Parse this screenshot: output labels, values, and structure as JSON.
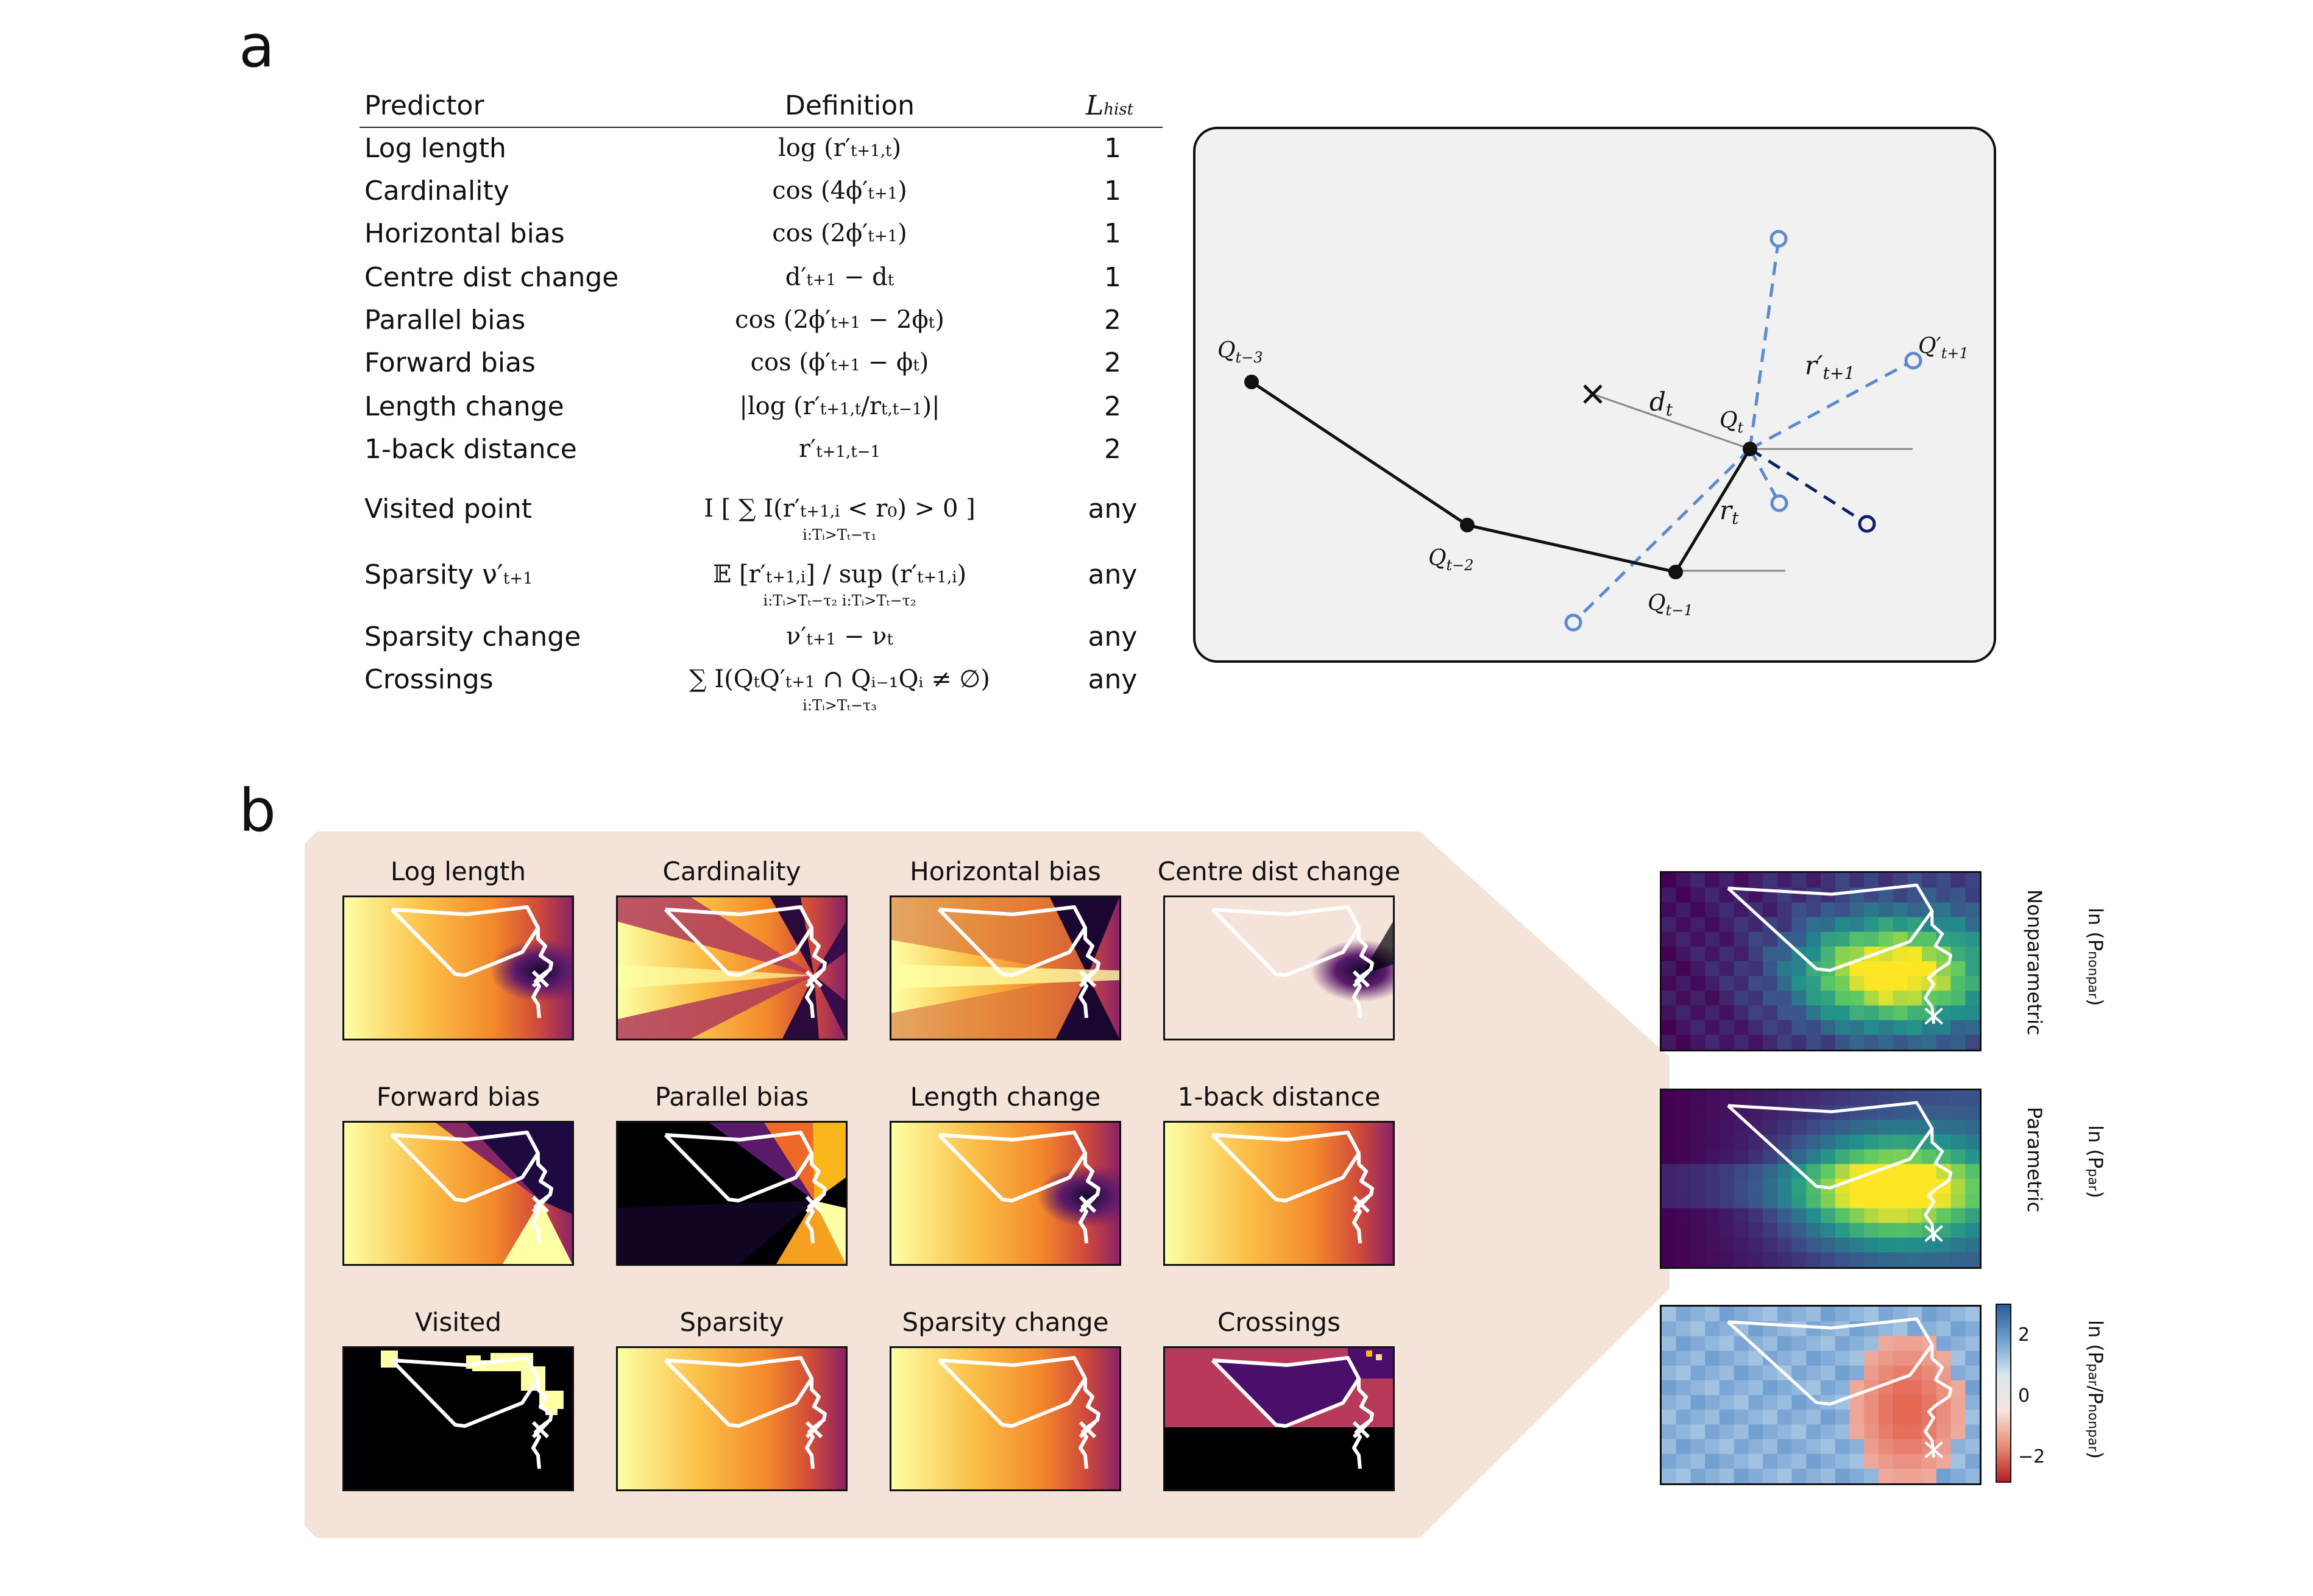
{
  "panel_a": {
    "letter": "a",
    "headers": {
      "predictor": "Predictor",
      "definition": "Definition",
      "lhist": "L",
      "lhist_sub": "hist"
    },
    "rows": [
      {
        "name": "Log length",
        "def": "log (r′",
        "def_sub": "t+1,t",
        "def_tail": ")",
        "lhist": "1"
      },
      {
        "name": "Cardinality",
        "def": "cos (4ϕ′",
        "def_sub": "t+1",
        "def_tail": ")",
        "lhist": "1"
      },
      {
        "name": "Horizontal bias",
        "def": "cos (2ϕ′",
        "def_sub": "t+1",
        "def_tail": ")",
        "lhist": "1"
      },
      {
        "name": "Centre dist change",
        "def": "d′",
        "def_sub": "t+1",
        "def_tail": " − d",
        "def_sub2": "t",
        "lhist": "1"
      },
      {
        "name": "Parallel bias",
        "def": "cos (2ϕ′",
        "def_sub": "t+1",
        "def_tail": " − 2ϕ",
        "def_sub2": "t",
        "def_tail2": ")",
        "lhist": "2"
      },
      {
        "name": "Forward bias",
        "def": "cos (ϕ′",
        "def_sub": "t+1",
        "def_tail": " − ϕ",
        "def_sub2": "t",
        "def_tail2": ")",
        "lhist": "2"
      },
      {
        "name": "Length change",
        "def": "|log (r′",
        "def_sub": "t+1,t",
        "def_tail": "/r",
        "def_sub2": "t,t−1",
        "def_tail2": ")|",
        "lhist": "2"
      },
      {
        "name": "1-back distance",
        "def": "r′",
        "def_sub": "t+1,t−1",
        "def_tail": "",
        "lhist": "2"
      },
      {
        "name": "Visited point",
        "def": "I [ ∑ I(r′",
        "def_sub": "t+1,i",
        "def_tail": " < r₀) > 0 ]",
        "def_under": "i:Tᵢ>Tₜ−τ₁",
        "lhist": "any"
      },
      {
        "name": "Sparsity ν′",
        "name_sub": "t+1",
        "def": "𝔼 [r′",
        "def_sub": "t+1,i",
        "def_tail": "] / sup (r′",
        "def_sub2": "t+1,i",
        "def_tail2": ")",
        "def_under": "i:Tᵢ>Tₜ−τ₂        i:Tᵢ>Tₜ−τ₂",
        "lhist": "any"
      },
      {
        "name": "Sparsity change",
        "def": "ν′",
        "def_sub": "t+1",
        "def_tail": " − ν",
        "def_sub2": "t",
        "lhist": "any"
      },
      {
        "name": "Crossings",
        "def": "∑ I(Q",
        "def_sub": "t",
        "def_tail": "Q′",
        "def_sub2": "t+1",
        "def_tail2": " ∩ Qᵢ₋₁Qᵢ ≠ ∅)",
        "def_under": "i:Tᵢ>Tₜ−τ₃",
        "lhist": "any"
      }
    ],
    "diagram": {
      "labels": {
        "q_t3": "Q",
        "q_t3_sub": "t−3",
        "q_t2": "Q",
        "q_t2_sub": "t−2",
        "q_t1": "Q",
        "q_t1_sub": "t−1",
        "q_t": "Q",
        "q_t_sub": "t",
        "q_next": "Q′",
        "q_next_sub": "t+1",
        "d_t": "d",
        "d_t_sub": "t",
        "r_t": "r",
        "r_t_sub": "t",
        "r_next": "r′",
        "r_next_sub": "t+1"
      },
      "colors": {
        "path": "#111111",
        "candidate": "#5b8ad0",
        "chosen": "#0f1f6e"
      }
    }
  },
  "panel_b": {
    "letter": "b",
    "heatmaps": [
      {
        "title": "Log length",
        "style": "log_length"
      },
      {
        "title": "Cardinality",
        "style": "cardinality"
      },
      {
        "title": "Horizontal bias",
        "style": "horizontal"
      },
      {
        "title": "Centre dist change",
        "style": "centre"
      },
      {
        "title": "Forward bias",
        "style": "forward"
      },
      {
        "title": "Parallel bias",
        "style": "parallel"
      },
      {
        "title": "Length change",
        "style": "length_change"
      },
      {
        "title": "1-back distance",
        "style": "oneback"
      },
      {
        "title": "Visited",
        "style": "visited"
      },
      {
        "title": "Sparsity",
        "style": "sparsity"
      },
      {
        "title": "Sparsity change",
        "style": "sparsity"
      },
      {
        "title": "Crossings",
        "style": "crossings"
      }
    ],
    "right": [
      {
        "side_label": "Nonparametric",
        "log_label": "ln (P",
        "log_sub": "nonpar",
        "log_tail": ")"
      },
      {
        "side_label": "Parametric",
        "log_label": "ln (P",
        "log_sub": "par",
        "log_tail": ")"
      },
      {
        "side_label": "",
        "log_label": "ln (P",
        "log_sub": "par",
        "log_tail": "/P",
        "log_sub2": "nonpar",
        "log_tail2": ")"
      }
    ],
    "colorbar_ticks": [
      "2",
      "0",
      "−2"
    ],
    "colors": {
      "backdrop": "#f4e3d8",
      "marker": "#ffffff"
    }
  }
}
